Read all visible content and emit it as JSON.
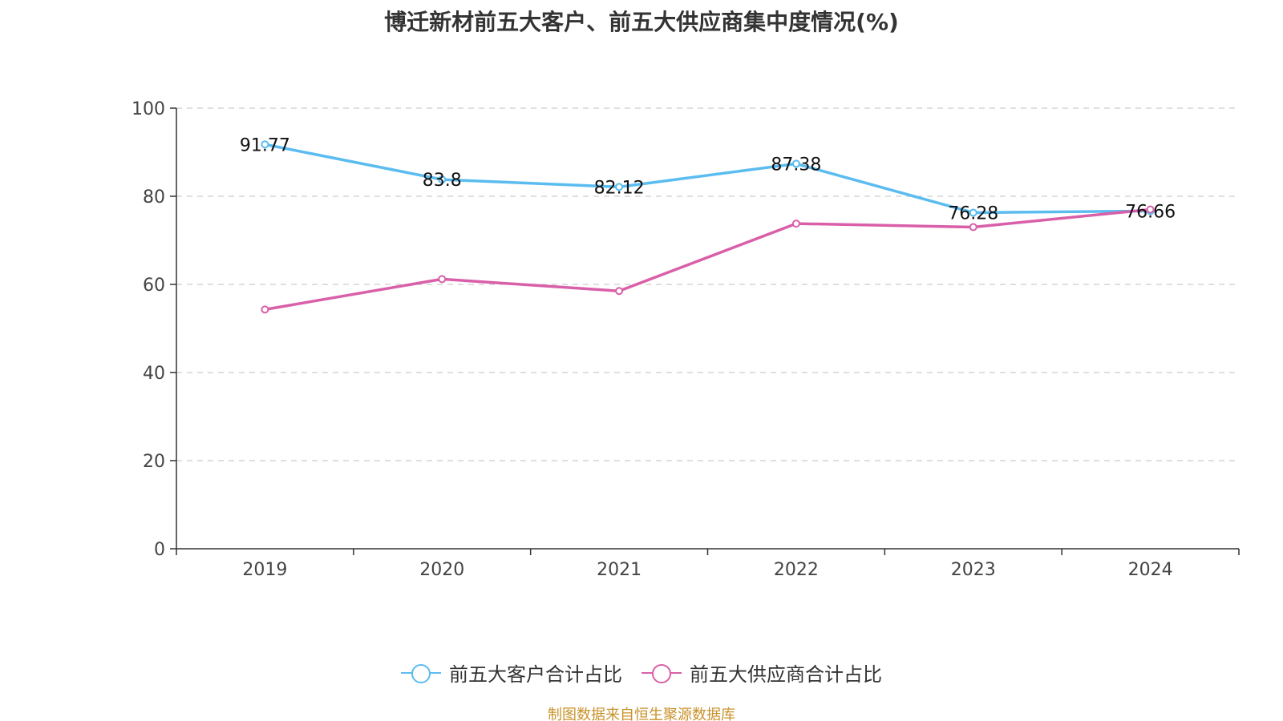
{
  "chart_data": {
    "type": "line",
    "title": "博迁新材前五大客户、前五大供应商集中度情况(%)",
    "xlabel": "",
    "ylabel": "",
    "categories": [
      "2019",
      "2020",
      "2021",
      "2022",
      "2023",
      "2024"
    ],
    "ylim": [
      0,
      100
    ],
    "yticks": [
      0,
      20,
      40,
      60,
      80,
      100
    ],
    "grid": true,
    "legend_position": "bottom",
    "series": [
      {
        "name": "前五大客户合计占比",
        "color": "#5bbcf0",
        "values": [
          91.77,
          83.8,
          82.12,
          87.38,
          76.28,
          76.66
        ],
        "labels": [
          "91.77",
          "83.8",
          "82.12",
          "87.38",
          "76.28",
          "76.66"
        ]
      },
      {
        "name": "前五大供应商合计占比",
        "color": "#d95fa8",
        "values": [
          54.3,
          61.2,
          58.5,
          73.8,
          73.0,
          77.0
        ]
      }
    ]
  },
  "source": "制图数据来自恒生聚源数据库"
}
